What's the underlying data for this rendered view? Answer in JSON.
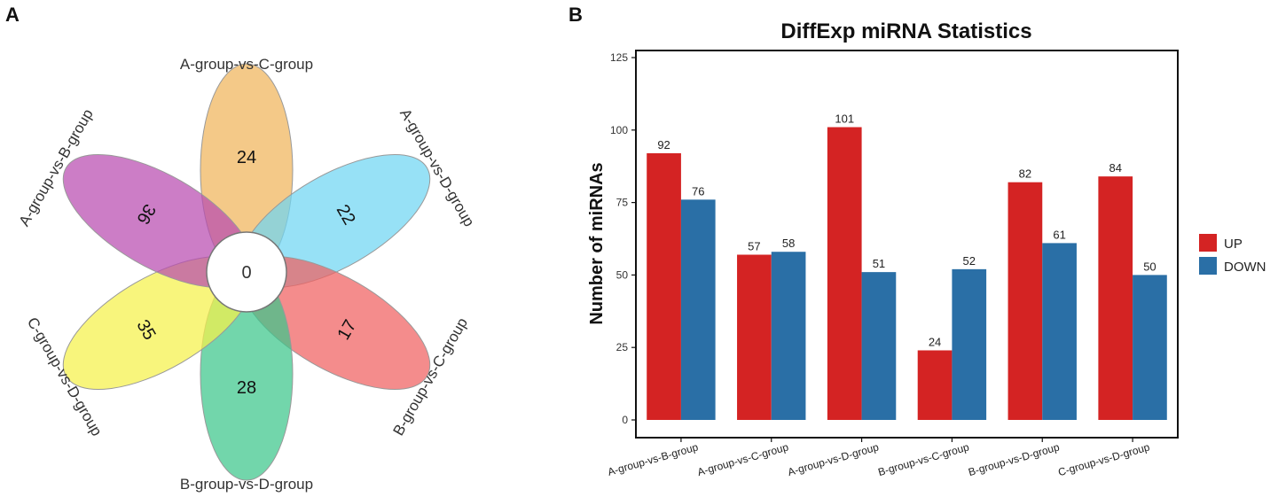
{
  "panels": {
    "a": "A",
    "b": "B"
  },
  "flower": {
    "center_value": "0",
    "petals": [
      {
        "name": "A-group-vs-C-group",
        "count": "24",
        "color": "#f0b45a"
      },
      {
        "name": "A-group-vs-D-group",
        "count": "22",
        "color": "#6fd5f3"
      },
      {
        "name": "B-group-vs-C-group",
        "count": "17",
        "color": "#f06060"
      },
      {
        "name": "B-group-vs-D-group",
        "count": "28",
        "color": "#3cc68a"
      },
      {
        "name": "C-group-vs-D-group",
        "count": "35",
        "color": "#f5f14a"
      },
      {
        "name": "A-group-vs-B-group",
        "count": "36",
        "color": "#b94bb0"
      }
    ]
  },
  "chart_data": {
    "type": "bar",
    "title": "DiffExp miRNA Statistics",
    "xlabel": "",
    "ylabel": "Number of miRNAs",
    "ylim": [
      0,
      125
    ],
    "yticks": [
      "0",
      "25",
      "50",
      "75",
      "100",
      "125"
    ],
    "categories": [
      "A-group-vs-B-group",
      "A-group-vs-C-group",
      "A-group-vs-D-group",
      "B-group-vs-C-group",
      "B-group-vs-D-group",
      "C-group-vs-D-group"
    ],
    "series": [
      {
        "name": "UP",
        "color": "#d42323",
        "values": [
          92,
          57,
          101,
          24,
          82,
          84
        ]
      },
      {
        "name": "DOWN",
        "color": "#2a6fa6",
        "values": [
          76,
          58,
          51,
          52,
          61,
          50
        ]
      }
    ],
    "legend_position": "right"
  }
}
